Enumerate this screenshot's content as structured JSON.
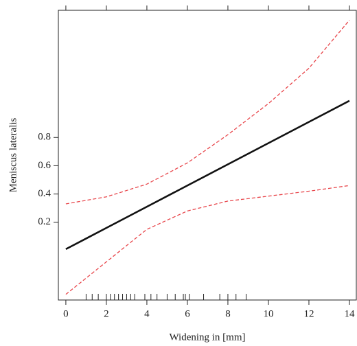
{
  "chart_data": {
    "type": "line",
    "x_label": "Widening in [mm]",
    "y_label": "Meniscus lateralis",
    "x": [
      0,
      2,
      4,
      6,
      8,
      10,
      12,
      14
    ],
    "series": [
      {
        "color": "#111111",
        "style": "solid",
        "values": [
          0.01,
          0.16,
          0.31,
          0.46,
          0.61,
          0.76,
          0.91,
          1.06
        ]
      },
      {
        "color": "#e8454a",
        "style": "dashed",
        "values": [
          0.33,
          0.38,
          0.47,
          0.62,
          0.82,
          1.04,
          1.29,
          1.63
        ]
      },
      {
        "color": "#e8454a",
        "style": "dashed",
        "values": [
          -0.31,
          -0.08,
          0.15,
          0.28,
          0.35,
          0.385,
          0.42,
          0.46
        ]
      }
    ],
    "rug": [
      1.0,
      1.3,
      1.6,
      2.0,
      2.2,
      2.4,
      2.6,
      2.8,
      3.0,
      3.2,
      3.4,
      3.9,
      4.2,
      4.5,
      5.0,
      5.4,
      5.8,
      5.9,
      6.1,
      6.8,
      7.6,
      8.0,
      8.4,
      8.9
    ],
    "xlim": [
      -0.37,
      14.34
    ],
    "ylim": [
      -0.35,
      1.7
    ],
    "xticks": [
      0,
      2,
      4,
      6,
      8,
      10,
      12,
      14
    ],
    "yticks": [
      0.2,
      0.4,
      0.6,
      0.8
    ]
  }
}
